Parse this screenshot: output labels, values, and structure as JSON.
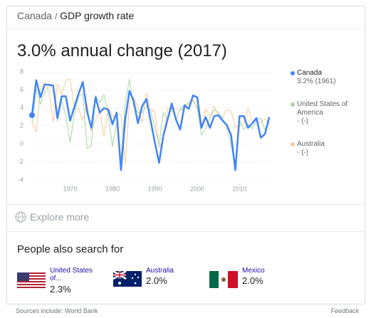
{
  "breadcrumb": {
    "parent": "Canada",
    "separator": "/",
    "current": "GDP growth rate"
  },
  "headline": "3.0% annual change (2017)",
  "chart_data": {
    "type": "line",
    "x": [
      1961,
      1962,
      1963,
      1964,
      1965,
      1966,
      1967,
      1968,
      1969,
      1970,
      1971,
      1972,
      1973,
      1974,
      1975,
      1976,
      1977,
      1978,
      1979,
      1980,
      1981,
      1982,
      1983,
      1984,
      1985,
      1986,
      1987,
      1988,
      1989,
      1990,
      1991,
      1992,
      1993,
      1994,
      1995,
      1996,
      1997,
      1998,
      1999,
      2000,
      2001,
      2002,
      2003,
      2004,
      2005,
      2006,
      2007,
      2008,
      2009,
      2010,
      2011,
      2012,
      2013,
      2014,
      2015,
      2016,
      2017
    ],
    "xlim": [
      1960,
      2018
    ],
    "xticks": [
      1970,
      1980,
      1990,
      2000,
      2010
    ],
    "ylim": [
      -4.4,
      8.5
    ],
    "yticks": [
      8,
      6,
      4,
      2,
      0,
      -2,
      -4
    ],
    "grid": true,
    "series": [
      {
        "name": "Canada",
        "color": "#4285f4",
        "legend_note": "3.2% (1961)",
        "values": [
          3.2,
          7.1,
          5.2,
          6.6,
          6.6,
          6.5,
          2.9,
          5.3,
          5.3,
          2.6,
          4.1,
          5.6,
          6.9,
          3.6,
          1.8,
          5.2,
          3.5,
          4.0,
          3.8,
          2.2,
          3.5,
          -2.9,
          2.7,
          5.9,
          4.8,
          2.3,
          4.2,
          5.0,
          2.6,
          0.2,
          -2.1,
          0.9,
          2.7,
          4.5,
          2.7,
          1.6,
          4.3,
          3.9,
          5.4,
          5.2,
          1.8,
          3.0,
          1.8,
          3.1,
          3.2,
          2.6,
          2.1,
          1.0,
          -2.9,
          3.1,
          3.1,
          1.8,
          2.3,
          2.9,
          0.7,
          1.1,
          3.0
        ]
      },
      {
        "name": "United States of America",
        "color": "#a8d5a2",
        "legend_note": "- (-)",
        "values": [
          2.3,
          6.1,
          4.4,
          5.8,
          6.4,
          6.5,
          2.5,
          4.8,
          3.1,
          0.2,
          3.3,
          5.3,
          5.6,
          -0.5,
          -0.2,
          5.4,
          4.6,
          5.5,
          3.2,
          -0.3,
          2.5,
          -1.8,
          4.6,
          7.2,
          4.2,
          3.5,
          3.5,
          4.2,
          3.7,
          1.9,
          -0.1,
          3.5,
          2.8,
          4.0,
          2.7,
          3.8,
          4.4,
          4.5,
          4.8,
          4.1,
          1.0,
          1.7,
          2.9,
          3.8,
          3.5,
          2.9,
          1.9,
          -0.1,
          -2.5,
          2.6,
          1.6,
          2.2,
          1.7,
          2.6,
          2.9,
          1.6,
          2.4
        ]
      },
      {
        "name": "Australia",
        "color": "#f8c99a",
        "legend_note": "- (-)",
        "values": [
          2.5,
          1.3,
          6.2,
          6.9,
          6.0,
          2.4,
          6.7,
          5.5,
          7.1,
          7.2,
          4.0,
          3.9,
          2.6,
          4.5,
          1.4,
          2.7,
          3.6,
          0.9,
          4.1,
          3.0,
          3.3,
          3.3,
          -2.2,
          4.6,
          5.2,
          4.1,
          2.4,
          5.7,
          3.8,
          3.6,
          -0.4,
          0.4,
          4.0,
          4.0,
          3.9,
          3.8,
          3.9,
          4.6,
          5.0,
          3.9,
          2.0,
          3.9,
          3.1,
          4.2,
          3.2,
          2.9,
          3.8,
          3.7,
          1.9,
          2.0,
          2.4,
          3.9,
          2.6,
          2.6,
          2.3,
          2.8,
          2.4
        ]
      }
    ]
  },
  "explore": "Explore more",
  "people_also_search": {
    "title": "People also search for",
    "items": [
      {
        "name": "United States of...",
        "value": "2.3%"
      },
      {
        "name": "Australia",
        "value": "2.0%"
      },
      {
        "name": "Mexico",
        "value": "2.0%"
      }
    ]
  },
  "footer": {
    "sources": "Sources include: World Bank",
    "feedback": "Feedback"
  }
}
